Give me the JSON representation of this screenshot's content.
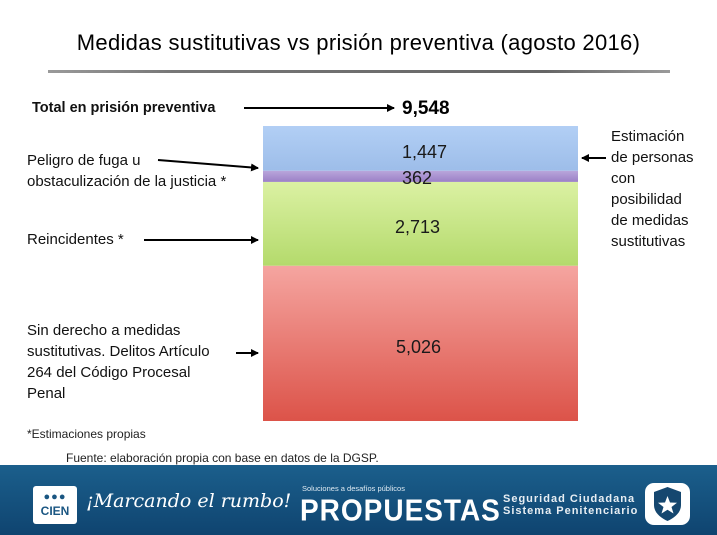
{
  "title": "Medidas sustitutivas vs prisión preventiva (agosto 2016)",
  "total": {
    "label": "Total en prisión preventiva",
    "value": "9,548"
  },
  "segments": [
    {
      "label_lines": [
        "Peligro de fuga u",
        "obstaculización de la justicia *"
      ],
      "value": "1,447"
    },
    {
      "value": "362"
    },
    {
      "label_lines": [
        "Reincidentes *"
      ],
      "value": "2,713"
    },
    {
      "label_lines": [
        "Sin derecho a medidas",
        "sustitutivas. Delitos Artículo",
        "264 del Código Procesal",
        "Penal"
      ],
      "value": "5,026"
    }
  ],
  "right_label_lines": [
    "Estimación",
    "de personas",
    "con",
    "posibilidad",
    "de medidas",
    "sustitutivas"
  ],
  "notes": {
    "estimates": "*Estimaciones propias",
    "source": "Fuente: elaboración propia con base en datos de la DGSP."
  },
  "footer": {
    "logo_text": "CIEN",
    "slogan": "¡Marcando el rumbo!",
    "propuestas_small": "Soluciones a desafíos públicos",
    "propuestas": "PROPUESTAS",
    "seguridad": "Seguridad Ciudadana",
    "sistema": "Sistema Penitenciario"
  },
  "chart_data": {
    "type": "bar",
    "stacked": true,
    "categories": [
      "Total en prisión preventiva"
    ],
    "total": 9548,
    "series": [
      {
        "values": [
          5026
        ],
        "color": "#e05a4f"
      },
      {
        "values": [
          2713
        ],
        "color": "#bfe07d"
      },
      {
        "values": [
          362
        ],
        "color": "#a085c8"
      },
      {
        "values": [
          1447
        ],
        "color": "#a8c6ef"
      }
    ]
  }
}
